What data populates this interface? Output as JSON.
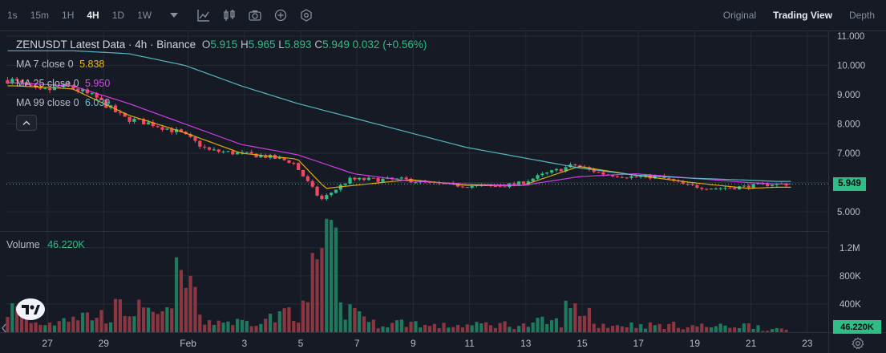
{
  "toolbar": {
    "timeframes": [
      {
        "label": "1s",
        "active": false
      },
      {
        "label": "15m",
        "active": false
      },
      {
        "label": "1H",
        "active": false
      },
      {
        "label": "4H",
        "active": true
      },
      {
        "label": "1D",
        "active": false
      },
      {
        "label": "1W",
        "active": false
      }
    ],
    "icons": [
      "chevron-down-icon",
      "indicators-icon",
      "candle-type-icon",
      "camera-icon",
      "plus-circle-icon",
      "settings-hex-icon"
    ],
    "views": [
      {
        "label": "Original",
        "active": false
      },
      {
        "label": "Trading View",
        "active": true
      },
      {
        "label": "Depth",
        "active": false
      }
    ]
  },
  "legend": {
    "title": "ZENUSDT Latest Data · 4h · Binance",
    "o_label": "O",
    "o": "5.915",
    "h_label": "H",
    "h": "5.965",
    "l_label": "L",
    "l": "5.893",
    "c_label": "C",
    "c": "5.949",
    "change": "0.032 (+0.56%)",
    "ma7": {
      "label": "MA 7 close 0",
      "value": "5.838",
      "color": "#f0b90b"
    },
    "ma25": {
      "label": "MA 25 close 0",
      "value": "5.950",
      "color": "#e040fb"
    },
    "ma99": {
      "label": "MA 99 close 0",
      "value": "6.039",
      "color": "#5bc8d4"
    }
  },
  "volume_legend": {
    "label": "Volume",
    "value": "46.220K"
  },
  "last_price_tag": "5.949",
  "last_volume_tag": "46.220K",
  "colors": {
    "up": "#2ebd85",
    "down": "#f6465d",
    "up_vol": "#1f7a5d",
    "down_vol": "#8c3641",
    "background": "#161a25",
    "grid": "#262a34"
  },
  "chart_data": [
    {
      "type": "line",
      "title": "ZENUSDT Latest Data · 4h · Binance",
      "ylim": [
        4.7,
        11.0
      ],
      "y_ticks": [
        "11.000",
        "10.000",
        "9.000",
        "8.000",
        "7.000",
        "6.000",
        "5.000"
      ],
      "x_ticks": [
        "27",
        "29",
        "Feb",
        "3",
        "5",
        "7",
        "9",
        "11",
        "13",
        "15",
        "17",
        "19",
        "21",
        "23"
      ],
      "series": [
        {
          "name": "Price",
          "x": [
            "Jan 26",
            "Jan 27",
            "Jan 28",
            "Jan 29",
            "Jan 30",
            "Jan 31",
            "Feb 1",
            "Feb 2",
            "Feb 3",
            "Feb 4",
            "Feb 5",
            "Feb 6",
            "Feb 7",
            "Feb 8",
            "Feb 9",
            "Feb 10",
            "Feb 11",
            "Feb 12",
            "Feb 13",
            "Feb 14",
            "Feb 15",
            "Feb 16",
            "Feb 17",
            "Feb 18",
            "Feb 19",
            "Feb 20",
            "Feb 21",
            "Feb 22"
          ],
          "values": [
            9.5,
            9.1,
            9.3,
            8.9,
            8.2,
            8.0,
            7.7,
            7.1,
            7.0,
            6.9,
            6.7,
            5.4,
            6.1,
            6.1,
            6.1,
            5.95,
            5.9,
            5.85,
            5.95,
            6.3,
            6.6,
            6.3,
            6.2,
            6.2,
            5.9,
            5.8,
            5.85,
            5.949
          ]
        },
        {
          "name": "MA 7 close 0",
          "x": [
            "Jan 26",
            "Jan 28",
            "Jan 30",
            "Feb 1",
            "Feb 3",
            "Feb 5",
            "Feb 6",
            "Feb 7",
            "Feb 9",
            "Feb 11",
            "Feb 13",
            "Feb 15",
            "Feb 17",
            "Feb 19",
            "Feb 21",
            "Feb 22"
          ],
          "values": [
            9.3,
            9.2,
            8.3,
            7.7,
            7.0,
            6.8,
            5.8,
            5.9,
            6.1,
            5.9,
            5.9,
            6.55,
            6.25,
            6.0,
            5.8,
            5.838
          ]
        },
        {
          "name": "MA 25 close 0",
          "x": [
            "Jan 26",
            "Jan 28",
            "Jan 30",
            "Feb 1",
            "Feb 3",
            "Feb 5",
            "Feb 7",
            "Feb 9",
            "Feb 11",
            "Feb 13",
            "Feb 15",
            "Feb 17",
            "Feb 19",
            "Feb 21",
            "Feb 22"
          ],
          "values": [
            9.4,
            9.3,
            8.7,
            8.0,
            7.3,
            6.95,
            6.3,
            6.05,
            5.95,
            5.9,
            6.2,
            6.3,
            6.15,
            6.0,
            5.95
          ]
        },
        {
          "name": "MA 99 close 0",
          "x": [
            "Jan 26",
            "Jan 28",
            "Jan 30",
            "Feb 1",
            "Feb 3",
            "Feb 5",
            "Feb 7",
            "Feb 9",
            "Feb 11",
            "Feb 13",
            "Feb 15",
            "Feb 17",
            "Feb 19",
            "Feb 21",
            "Feb 22"
          ],
          "values": [
            10.5,
            10.5,
            10.4,
            10.0,
            9.3,
            8.7,
            8.2,
            7.7,
            7.2,
            6.85,
            6.5,
            6.25,
            6.15,
            6.08,
            6.039
          ]
        }
      ],
      "last_price": 5.949
    },
    {
      "type": "bar",
      "title": "Volume",
      "ylim": [
        0,
        1300000
      ],
      "y_ticks": [
        "1.2M",
        "800K",
        "400K"
      ],
      "categories": [
        "Jan 26",
        "Jan 27",
        "Jan 28",
        "Jan 29",
        "Jan 30",
        "Jan 31",
        "Feb 1",
        "Feb 2",
        "Feb 3",
        "Feb 4",
        "Feb 5",
        "Feb 6",
        "Feb 7",
        "Feb 8",
        "Feb 9",
        "Feb 10",
        "Feb 11",
        "Feb 12",
        "Feb 13",
        "Feb 14",
        "Feb 15",
        "Feb 16",
        "Feb 17",
        "Feb 18",
        "Feb 19",
        "Feb 20",
        "Feb 21",
        "Feb 22"
      ],
      "series": [
        {
          "name": "Volume",
          "values": [
            400000,
            160000,
            300000,
            290000,
            400000,
            300000,
            880000,
            200000,
            180000,
            250000,
            380000,
            1300000,
            400000,
            150000,
            170000,
            110000,
            120000,
            140000,
            120000,
            180000,
            400000,
            130000,
            130000,
            120000,
            110000,
            100000,
            120000,
            46220
          ]
        }
      ],
      "last_value": 46220
    }
  ]
}
